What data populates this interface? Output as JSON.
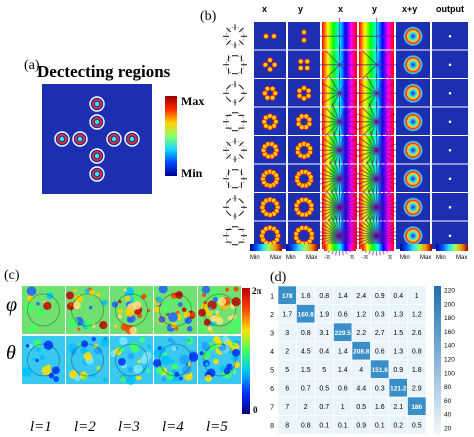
{
  "panel_a": {
    "label": "(a)",
    "title": "Dectecting regions",
    "colorbar": {
      "max": "Max",
      "min": "Min"
    }
  },
  "panel_b": {
    "label": "(b)",
    "column_headers": [
      "x",
      "y",
      "x",
      "y",
      "x+y",
      "output"
    ],
    "rows": 8,
    "scale_labels": [
      {
        "min": "Min",
        "max": "Max"
      },
      {
        "min": "Min",
        "max": "Max"
      },
      {
        "min": "-π",
        "max": "π"
      },
      {
        "min": "-π",
        "max": "π"
      },
      {
        "min": "Min",
        "max": "Max"
      },
      {
        "min": "Min",
        "max": "Max"
      }
    ]
  },
  "panel_c": {
    "label": "(c)",
    "row_labels": [
      "φ",
      "θ"
    ],
    "col_labels": [
      "l=1",
      "l=2",
      "l=3",
      "l=4",
      "l=5"
    ],
    "colorbar": {
      "top": "2π",
      "bottom": "0"
    }
  },
  "panel_d": {
    "label": "(d)",
    "row_labels": [
      "1",
      "2",
      "3",
      "4",
      "5",
      "6",
      "7",
      "8"
    ],
    "col_labels": [
      "1",
      "2",
      "3",
      "4",
      "5",
      "6",
      "7",
      "8"
    ],
    "matrix": [
      [
        "178",
        "1.6",
        "0.8",
        "1.4",
        "2.4",
        "0.9",
        "0.4",
        "1"
      ],
      [
        "1.7",
        "160.8",
        "1.9",
        "0.6",
        "1.2",
        "0.3",
        "1.3",
        "1.2"
      ],
      [
        "3",
        "0.8",
        "3.1",
        "229.5",
        "2.2",
        "2.7",
        "1.5",
        "2.6"
      ],
      [
        "2",
        "4.5",
        "0.4",
        "1.4",
        "208.8",
        "0.6",
        "1.3",
        "0.8"
      ],
      [
        "5",
        "1.5",
        "5",
        "1.4",
        "4",
        "151.6",
        "0.9",
        "1.8"
      ],
      [
        "6",
        "0.7",
        "0.5",
        "0.6",
        "4.4",
        "0.3",
        "121.2",
        "2.9"
      ],
      [
        "7",
        "2",
        "0.7",
        "1",
        "0.5",
        "1.6",
        "2.1",
        "186"
      ],
      [
        "8",
        "0.8",
        "0.1",
        "0.1",
        "0.9",
        "0.1",
        "0.2",
        "0.5"
      ]
    ],
    "colorbar_ticks": [
      "220",
      "200",
      "180",
      "160",
      "140",
      "120",
      "100",
      "80",
      "60",
      "40",
      "20"
    ]
  }
}
